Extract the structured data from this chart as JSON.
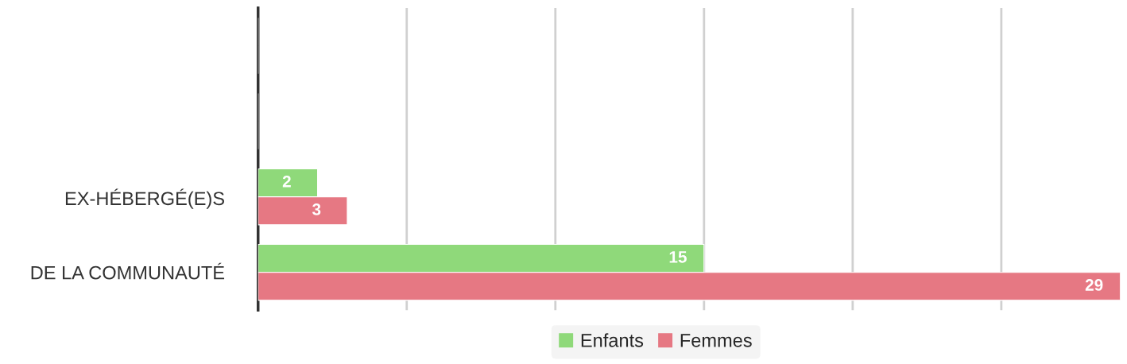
{
  "chart_data": {
    "type": "bar",
    "orientation": "horizontal",
    "categories": [
      null,
      null,
      "EX-HÉBERGÉ(E)S",
      "DE LA COMMUNAUTÉ"
    ],
    "series": [
      {
        "name": "Enfants",
        "color": "#8fd97a",
        "values": [
          null,
          null,
          2,
          15
        ]
      },
      {
        "name": "Femmes",
        "color": "#e67883",
        "values": [
          null,
          null,
          3,
          29
        ]
      }
    ],
    "xlim": [
      0,
      29
    ],
    "xticks": [
      {
        "value": 0,
        "label": null
      },
      {
        "value": 5,
        "label": null
      },
      {
        "value": 10,
        "label": null
      },
      {
        "value": 15,
        "label": null
      },
      {
        "value": 20,
        "label": null
      },
      {
        "value": 25,
        "label": null
      }
    ],
    "grid": "x",
    "legend": "bottom",
    "data_labels": true
  }
}
